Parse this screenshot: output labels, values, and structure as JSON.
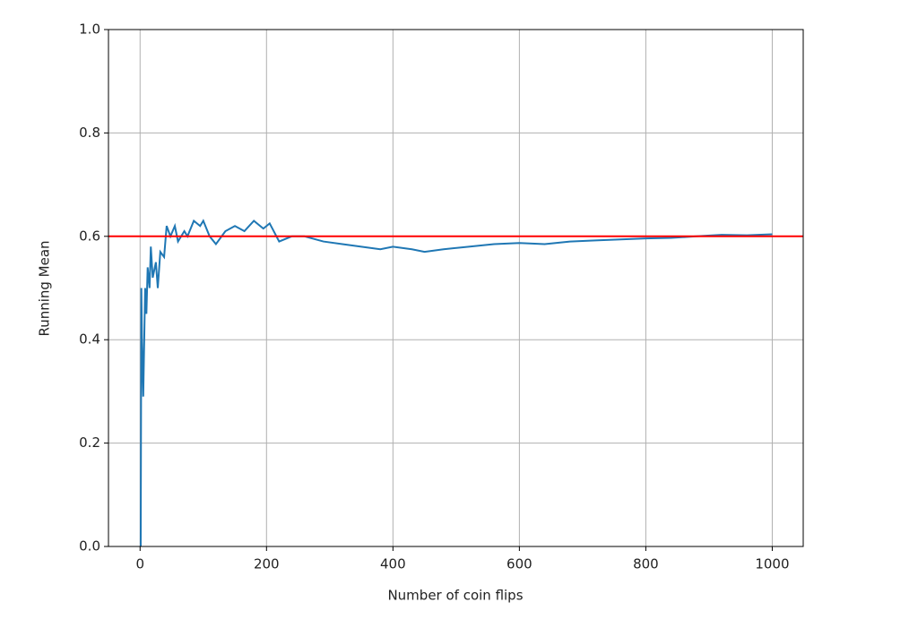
{
  "chart_data": {
    "type": "line",
    "x_label": "Number of coin flips",
    "y_label": "Running Mean",
    "x": [
      1,
      2,
      3,
      5,
      8,
      10,
      12,
      15,
      17,
      20,
      25,
      28,
      32,
      38,
      42,
      48,
      55,
      60,
      70,
      75,
      85,
      95,
      100,
      110,
      120,
      135,
      150,
      165,
      180,
      195,
      205,
      220,
      240,
      260,
      290,
      320,
      350,
      380,
      400,
      430,
      450,
      480,
      520,
      560,
      600,
      640,
      680,
      720,
      760,
      800,
      840,
      880,
      920,
      960,
      1000
    ],
    "values": [
      0,
      0.5,
      0.4,
      0.29,
      0.5,
      0.45,
      0.54,
      0.5,
      0.58,
      0.52,
      0.55,
      0.5,
      0.57,
      0.56,
      0.62,
      0.6,
      0.62,
      0.59,
      0.61,
      0.6,
      0.63,
      0.62,
      0.63,
      0.6,
      0.585,
      0.61,
      0.62,
      0.61,
      0.63,
      0.615,
      0.625,
      0.59,
      0.6,
      0.6,
      0.59,
      0.585,
      0.58,
      0.575,
      0.58,
      0.575,
      0.57,
      0.575,
      0.58,
      0.585,
      0.587,
      0.585,
      0.59,
      0.592,
      0.594,
      0.596,
      0.597,
      0.6,
      0.603,
      0.602,
      0.604
    ],
    "color": "#1f77b4",
    "hline": {
      "value": 0.6,
      "color": "#ff0000"
    },
    "xlim": [
      -50,
      1049
    ],
    "ylim": [
      0,
      1
    ],
    "xticks": [
      0,
      200,
      400,
      600,
      800,
      1000
    ],
    "yticks": [
      {
        "value": 0,
        "label": "0.0"
      },
      0.2,
      0.4,
      0.6,
      0.8,
      {
        "value": 1,
        "label": "1.0"
      }
    ],
    "grid": true
  }
}
